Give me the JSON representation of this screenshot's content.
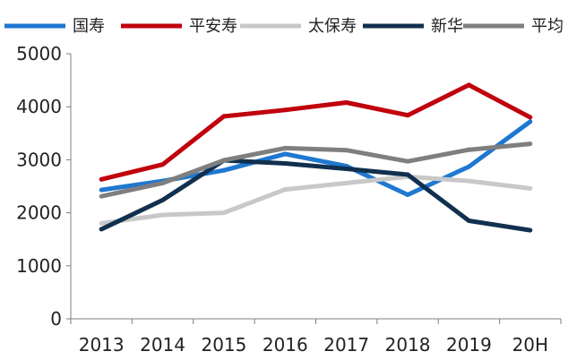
{
  "chart_data": {
    "type": "line",
    "title": "",
    "xlabel": "",
    "ylabel": "",
    "categories": [
      "2013",
      "2014",
      "2015",
      "2016",
      "2017",
      "2018",
      "2019",
      "20H"
    ],
    "ylim": [
      0,
      5000
    ],
    "yticks": [
      "0",
      "1000",
      "2000",
      "3000",
      "4000",
      "5000"
    ],
    "grid": false,
    "legend_position": "top",
    "series": [
      {
        "name": "国寿",
        "color": "#1f78d0",
        "values": [
          2430,
          2600,
          2800,
          3110,
          2880,
          2340,
          2870,
          3720
        ]
      },
      {
        "name": "平安寿",
        "color": "#c0000c",
        "values": [
          2630,
          2910,
          3820,
          3940,
          4080,
          3840,
          4410,
          3800
        ]
      },
      {
        "name": "太保寿",
        "color": "#c8c8c8",
        "values": [
          1800,
          1960,
          2000,
          2440,
          2560,
          2680,
          2600,
          2460
        ]
      },
      {
        "name": "新华",
        "color": "#11304f",
        "values": [
          1690,
          2240,
          2990,
          2930,
          2830,
          2720,
          1850,
          1670
        ]
      },
      {
        "name": "平均",
        "color": "#7f7f7f",
        "values": [
          2310,
          2560,
          2990,
          3220,
          3180,
          2970,
          3190,
          3300
        ]
      }
    ]
  }
}
